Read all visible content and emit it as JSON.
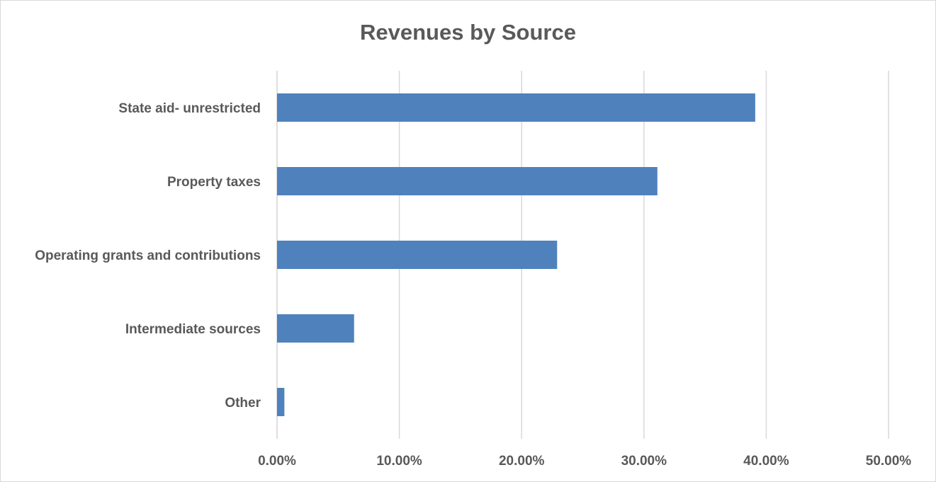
{
  "chart_data": {
    "type": "bar",
    "orientation": "horizontal",
    "title": "Revenues by Source",
    "xlabel": "",
    "ylabel": "",
    "categories": [
      "State aid- unrestricted",
      "Property taxes",
      "Operating grants and contributions",
      "Intermediate sources",
      "Other"
    ],
    "values": [
      39.1,
      31.1,
      22.9,
      6.3,
      0.6
    ],
    "xlim": [
      0,
      50
    ],
    "x_ticks": [
      "0.00%",
      "10.00%",
      "20.00%",
      "30.00%",
      "40.00%",
      "50.00%"
    ],
    "grid": true,
    "legend": "none",
    "colors": {
      "bar": "#4f81bd",
      "grid": "#d9d9d9",
      "text": "#595959"
    }
  }
}
